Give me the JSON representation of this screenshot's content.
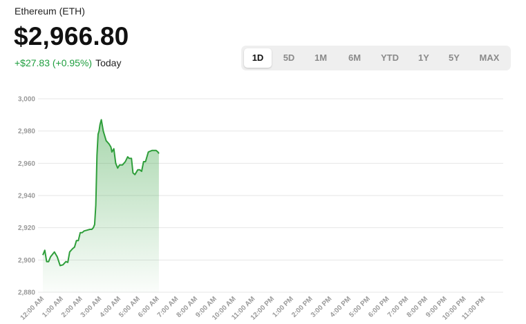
{
  "header": {
    "asset_name": "Ethereum (ETH)",
    "price": "$2,966.80",
    "change": "+$27.83 (+0.95%)",
    "period_label": "Today"
  },
  "range_tabs": [
    {
      "label": "1D",
      "active": true
    },
    {
      "label": "5D",
      "active": false
    },
    {
      "label": "1M",
      "active": false
    },
    {
      "label": "6M",
      "active": false
    },
    {
      "label": "YTD",
      "active": false
    },
    {
      "label": "1Y",
      "active": false
    },
    {
      "label": "5Y",
      "active": false
    },
    {
      "label": "MAX",
      "active": false
    }
  ],
  "colors": {
    "line": "#2e9e3a",
    "fill_top": "#2e9e3a",
    "grid": "#e6e6e6",
    "change_positive": "#1e9e3e"
  },
  "chart_data": {
    "type": "area",
    "title": "",
    "xlabel": "",
    "ylabel": "",
    "ylim": [
      2880,
      3000
    ],
    "y_ticks": [
      2880,
      2900,
      2920,
      2940,
      2960,
      2980,
      3000
    ],
    "y_tick_labels": [
      "2,880",
      "2,900",
      "2,920",
      "2,940",
      "2,960",
      "2,980",
      "3,000"
    ],
    "grid": true,
    "x_unit_label": "hours",
    "xlim": [
      0,
      24
    ],
    "x_tick_labels": [
      "12:00 AM",
      "1:00 AM",
      "2:00 AM",
      "3:00 AM",
      "4:00 AM",
      "5:00 AM",
      "6:00 AM",
      "7:00 AM",
      "8:00 AM",
      "9:00 AM",
      "10:00 AM",
      "11:00 AM",
      "12:00 PM",
      "1:00 PM",
      "2:00 PM",
      "3:00 PM",
      "4:00 PM",
      "5:00 PM",
      "6:00 PM",
      "7:00 PM",
      "8:00 PM",
      "9:00 PM",
      "10:00 PM",
      "11:00 PM"
    ],
    "series": [
      {
        "x": [
          0,
          0.1,
          0.2,
          0.3,
          0.4,
          0.6,
          0.75,
          0.9,
          1.05,
          1.2,
          1.3,
          1.4,
          1.55,
          1.65,
          1.75,
          1.85,
          1.95,
          2.05,
          2.15,
          2.3,
          2.45,
          2.55,
          2.63,
          2.7,
          2.76,
          2.82,
          2.88,
          2.93,
          2.98,
          3.05,
          3.15,
          3.3,
          3.45,
          3.55,
          3.6,
          3.7,
          3.8,
          3.9,
          4.0,
          4.15,
          4.3,
          4.42,
          4.5,
          4.62,
          4.7,
          4.8,
          4.95,
          5.05,
          5.15,
          5.25,
          5.35,
          5.5,
          5.7,
          5.8,
          5.9,
          6.0,
          6.05
        ],
        "y": [
          2903,
          2906,
          2899,
          2899,
          2902,
          2905,
          2902,
          2896.5,
          2897,
          2899,
          2898.5,
          2905,
          2907,
          2908,
          2912,
          2912,
          2917,
          2917,
          2918,
          2918.5,
          2919,
          2919,
          2920,
          2922,
          2934,
          2965,
          2978,
          2980,
          2984,
          2987,
          2980,
          2974,
          2972,
          2970,
          2967,
          2969,
          2960,
          2957,
          2959,
          2959,
          2961,
          2964,
          2963,
          2963,
          2954,
          2953,
          2956,
          2956,
          2955,
          2961,
          2961,
          2967,
          2968,
          2968,
          2968,
          2967,
          2966
        ]
      }
    ]
  }
}
